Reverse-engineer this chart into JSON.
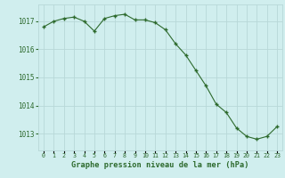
{
  "x": [
    0,
    1,
    2,
    3,
    4,
    5,
    6,
    7,
    8,
    9,
    10,
    11,
    12,
    13,
    14,
    15,
    16,
    17,
    18,
    19,
    20,
    21,
    22,
    23
  ],
  "y": [
    1016.8,
    1017.0,
    1017.1,
    1017.15,
    1017.0,
    1016.65,
    1017.1,
    1017.2,
    1017.25,
    1017.05,
    1017.05,
    1016.95,
    1016.7,
    1016.2,
    1015.8,
    1015.25,
    1014.7,
    1014.05,
    1013.75,
    1013.2,
    1012.9,
    1012.8,
    1012.9,
    1013.25
  ],
  "line_color": "#2d6a2d",
  "marker_color": "#2d6a2d",
  "bg_color": "#d0eeee",
  "grid_color": "#b8d8d8",
  "xlabel": "Graphe pression niveau de la mer (hPa)",
  "xlabel_color": "#2d6a2d",
  "ylabel_ticks": [
    1013,
    1014,
    1015,
    1016,
    1017
  ],
  "ylim": [
    1012.4,
    1017.6
  ],
  "xlim": [
    -0.5,
    23.5
  ],
  "tick_color": "#2d6a2d",
  "xtick_labels": [
    "0",
    "1",
    "2",
    "3",
    "4",
    "5",
    "6",
    "7",
    "8",
    "9",
    "10",
    "11",
    "12",
    "13",
    "14",
    "15",
    "16",
    "17",
    "18",
    "19",
    "20",
    "21",
    "22",
    "23"
  ]
}
